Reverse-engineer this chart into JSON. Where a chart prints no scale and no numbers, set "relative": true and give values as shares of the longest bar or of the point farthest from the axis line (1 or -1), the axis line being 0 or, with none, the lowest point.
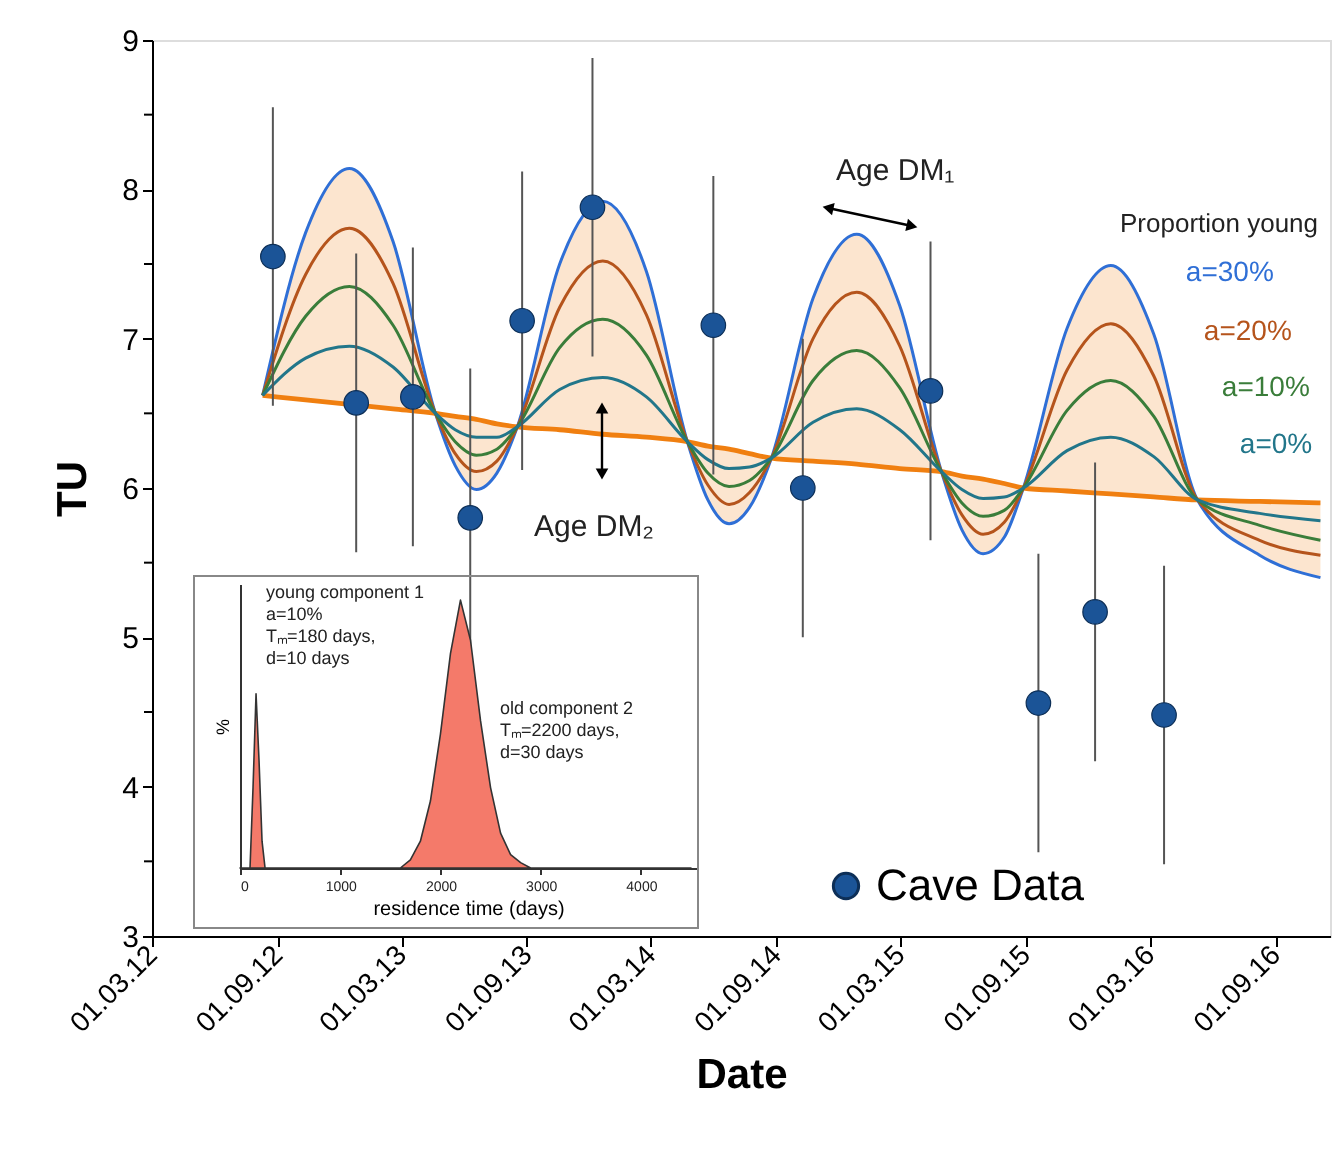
{
  "chart_data": [
    {
      "type": "line",
      "xlabel": "Date",
      "ylabel": "TU",
      "xlim": [
        "2012-03-01",
        "2016-11-20"
      ],
      "ylim": [
        3,
        9
      ],
      "xticks": [
        {
          "value": "2012-03-01",
          "label": "01.03.12"
        },
        {
          "value": "2012-09-01",
          "label": "01.09.12"
        },
        {
          "value": "2013-03-01",
          "label": "01.03.13"
        },
        {
          "value": "2013-09-01",
          "label": "01.09.13"
        },
        {
          "value": "2014-03-01",
          "label": "01.03.14"
        },
        {
          "value": "2014-09-01",
          "label": "01.09.14"
        },
        {
          "value": "2015-03-01",
          "label": "01.03.15"
        },
        {
          "value": "2015-09-01",
          "label": "01.09.15"
        },
        {
          "value": "2016-03-01",
          "label": "01.03.16"
        },
        {
          "value": "2016-09-01",
          "label": "01.09.16"
        }
      ],
      "yticks": [
        3,
        {
          "value": 3.5,
          "label": null
        },
        4,
        {
          "value": 4.5,
          "label": null
        },
        5,
        {
          "value": 5.5,
          "label": null
        },
        6,
        {
          "value": 6.5,
          "label": null
        },
        7,
        {
          "value": 7.5,
          "label": null
        },
        8,
        {
          "value": 8.5,
          "label": null
        },
        9
      ],
      "grid": false,
      "legend": "bottom right",
      "marker": "none",
      "line_style": "solid",
      "annotations": [
        "Age DM₁",
        "Age DM₂",
        "Proportion young"
      ],
      "x": [
        "2012-08-10",
        "2012-10-12",
        "2012-12-15",
        "2013-02-17",
        "2013-04-20",
        "2013-05-19",
        "2013-06-19",
        "2013-07-19",
        "2013-08-18",
        "2013-10-19",
        "2013-12-21",
        "2014-02-23",
        "2014-04-24",
        "2014-05-24",
        "2014-06-24",
        "2014-07-24",
        "2014-08-25",
        "2014-10-25",
        "2014-12-28",
        "2015-03-01",
        "2015-05-01",
        "2015-05-31",
        "2015-07-01",
        "2015-08-01",
        "2015-08-29",
        "2015-11-01",
        "2016-01-04",
        "2016-03-07",
        "2016-05-10",
        "2016-08-09",
        "2016-11-06"
      ],
      "series": [
        {
          "color": "#f07f10",
          "values": [
            6.62,
            6.59,
            6.56,
            6.53,
            6.5,
            6.48,
            6.46,
            6.43,
            6.41,
            6.39,
            6.36,
            6.34,
            6.31,
            6.28,
            6.26,
            6.23,
            6.2,
            6.18,
            6.16,
            6.13,
            6.11,
            6.08,
            6.06,
            6.03,
            6.0,
            5.98,
            5.96,
            5.94,
            5.92,
            5.91,
            5.9
          ],
          "lower": [
            6.62,
            6.59,
            6.56,
            6.53,
            6.5,
            6.48,
            6.46,
            6.43,
            6.41,
            6.39,
            6.36,
            6.34,
            6.31,
            6.28,
            6.26,
            6.23,
            6.2,
            6.18,
            6.16,
            6.13,
            6.11,
            6.08,
            6.06,
            6.03,
            6.0,
            5.98,
            5.96,
            5.94,
            5.92,
            5.91,
            5.9
          ],
          "upper": [
            6.62,
            7.71,
            8.14,
            7.65,
            6.5,
            6.15,
            5.99,
            6.1,
            6.41,
            7.5,
            7.92,
            7.45,
            6.31,
            5.92,
            5.76,
            5.87,
            6.2,
            7.27,
            7.7,
            7.22,
            6.11,
            5.72,
            5.56,
            5.67,
            6.0,
            7.07,
            7.49,
            7.03,
            5.92,
            5.55,
            5.4
          ]
        },
        {
          "name": "a=30%",
          "color": "#2f6fd6",
          "values": [
            6.62,
            7.71,
            8.14,
            7.65,
            6.5,
            6.15,
            5.99,
            6.1,
            6.41,
            7.5,
            7.92,
            7.45,
            6.31,
            5.92,
            5.76,
            5.87,
            6.2,
            7.27,
            7.7,
            7.22,
            6.11,
            5.72,
            5.56,
            5.67,
            6.0,
            7.07,
            7.49,
            7.03,
            5.92,
            5.55,
            5.4
          ]
        },
        {
          "name": "a=20%",
          "color": "#b5541c",
          "values": [
            6.62,
            7.43,
            7.74,
            7.37,
            6.5,
            6.23,
            6.11,
            6.18,
            6.41,
            7.21,
            7.52,
            7.16,
            6.31,
            6.02,
            5.89,
            5.97,
            6.2,
            7.0,
            7.31,
            6.95,
            6.11,
            5.82,
            5.69,
            5.77,
            6.0,
            6.79,
            7.1,
            6.75,
            5.92,
            5.65,
            5.55
          ]
        },
        {
          "name": "a=10%",
          "color": "#3a7d3a",
          "values": [
            6.62,
            7.15,
            7.35,
            7.09,
            6.5,
            6.31,
            6.22,
            6.26,
            6.41,
            6.94,
            7.13,
            6.89,
            6.31,
            6.1,
            6.01,
            6.05,
            6.2,
            6.72,
            6.92,
            6.67,
            6.11,
            5.9,
            5.81,
            5.85,
            6.0,
            6.52,
            6.72,
            6.48,
            5.92,
            5.75,
            5.65
          ]
        },
        {
          "name": "a=0%",
          "color": "#22768a",
          "values": [
            6.62,
            6.87,
            6.95,
            6.81,
            6.5,
            6.39,
            6.34,
            6.34,
            6.41,
            6.66,
            6.74,
            6.61,
            6.31,
            6.19,
            6.13,
            6.14,
            6.2,
            6.44,
            6.53,
            6.39,
            6.11,
            5.99,
            5.93,
            5.94,
            6.0,
            6.25,
            6.34,
            6.21,
            5.92,
            5.83,
            5.78
          ]
        },
        {
          "name": "Cave Data",
          "type": "scatter",
          "marker": "circle",
          "color": "#1b5497",
          "x": [
            "2012-08-25",
            "2012-12-25",
            "2013-03-18",
            "2013-06-10",
            "2013-08-25",
            "2013-12-06",
            "2014-06-01",
            "2014-10-10",
            "2015-04-15",
            "2015-09-20",
            "2015-12-12",
            "2016-03-22"
          ],
          "values": [
            7.55,
            6.57,
            6.61,
            5.8,
            7.12,
            7.88,
            7.09,
            6.0,
            6.65,
            4.56,
            5.17,
            4.48
          ],
          "errors": [
            1,
            1,
            1,
            1,
            1,
            1,
            1,
            1,
            1,
            1,
            1,
            1
          ]
        }
      ]
    },
    {
      "type": "area",
      "relative": true,
      "xlabel": "residence time (days)",
      "ylabel": "%",
      "xlim": [
        0,
        4550
      ],
      "xticks": [
        0,
        1000,
        2000,
        3000,
        4000
      ],
      "tick_labels": "x",
      "annotations": [
        "young component 1\na=10%\nTₘ=180 days,\nd=10 days",
        "old component 2\nTₘ=2200 days,\nd=30 days"
      ],
      "series": [
        {
          "color": "#f47a6a",
          "x": [
            0,
            100,
            130,
            160,
            190,
            220,
            250,
            300,
            1600,
            1700,
            1800,
            1900,
            2000,
            2100,
            2200,
            2300,
            2400,
            2500,
            2600,
            2700,
            2800,
            2900,
            4500
          ],
          "values": [
            0,
            0,
            0.3,
            0.65,
            0.4,
            0.1,
            0,
            0,
            0,
            0.03,
            0.1,
            0.25,
            0.5,
            0.8,
            1,
            0.85,
            0.55,
            0.3,
            0.13,
            0.05,
            0.02,
            0,
            0
          ]
        }
      ]
    }
  ]
}
